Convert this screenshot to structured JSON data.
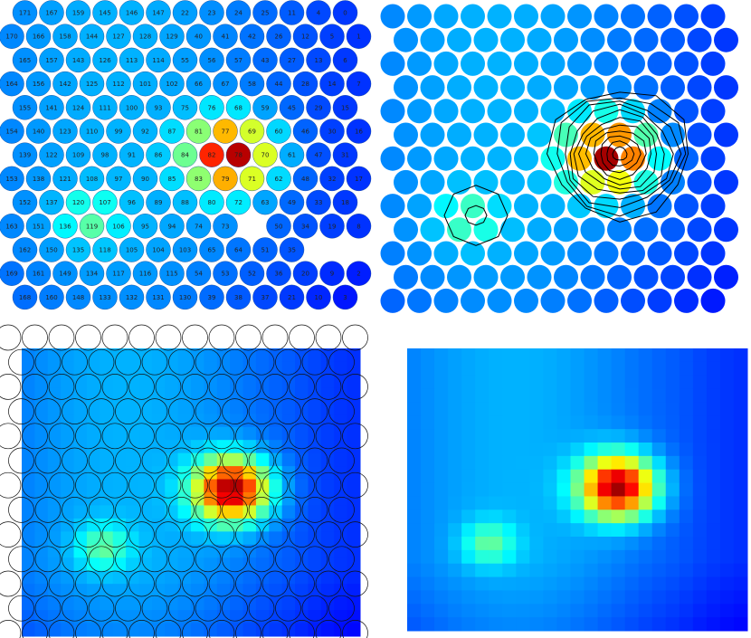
{
  "chart_data": [
    {
      "type": "scatter",
      "panel": "electrode-map-labeled",
      "colormap": "jet",
      "rows": [
        [
          "171",
          "167",
          "159",
          "145",
          "146",
          "147",
          "22",
          "23",
          "24",
          "25",
          "11",
          "4",
          "0"
        ],
        [
          "170",
          "166",
          "158",
          "144",
          "127",
          "128",
          "129",
          "40",
          "41",
          "42",
          "26",
          "12",
          "5",
          "1"
        ],
        [
          "165",
          "157",
          "143",
          "126",
          "113",
          "114",
          "55",
          "56",
          "57",
          "43",
          "27",
          "13",
          "6"
        ],
        [
          "164",
          "156",
          "142",
          "125",
          "112",
          "101",
          "102",
          "66",
          "67",
          "58",
          "44",
          "28",
          "14",
          "7"
        ],
        [
          "155",
          "141",
          "124",
          "111",
          "100",
          "93",
          "75",
          "76",
          "68",
          "59",
          "45",
          "29",
          "15"
        ],
        [
          "154",
          "140",
          "123",
          "110",
          "99",
          "92",
          "87",
          "81",
          "77",
          "69",
          "60",
          "46",
          "30",
          "16"
        ],
        [
          "139",
          "122",
          "109",
          "98",
          "91",
          "86",
          "84",
          "82",
          "78",
          "70",
          "61",
          "47",
          "31"
        ],
        [
          "153",
          "138",
          "121",
          "108",
          "97",
          "90",
          "85",
          "83",
          "79",
          "71",
          "62",
          "48",
          "32",
          "17"
        ],
        [
          "152",
          "137",
          "120",
          "107",
          "96",
          "89",
          "88",
          "80",
          "72",
          "63",
          "49",
          "33",
          "18"
        ],
        [
          "163",
          "151",
          "136",
          "119",
          "106",
          "95",
          "94",
          "74",
          "73",
          "",
          "50",
          "34",
          "19",
          "8"
        ],
        [
          "162",
          "150",
          "135",
          "118",
          "105",
          "104",
          "103",
          "65",
          "64",
          "51",
          "35"
        ],
        [
          "169",
          "161",
          "149",
          "134",
          "117",
          "116",
          "115",
          "54",
          "53",
          "52",
          "36",
          "20",
          "9",
          "2"
        ],
        [
          "168",
          "160",
          "148",
          "133",
          "132",
          "131",
          "130",
          "39",
          "38",
          "37",
          "21",
          "10",
          "3"
        ]
      ],
      "peak_electrode": "78"
    },
    {
      "type": "scatter",
      "panel": "electrode-map-contours",
      "colormap": "jet",
      "overlay": "contour lines",
      "peak_electrode": "78"
    },
    {
      "type": "heatmap",
      "panel": "interpolated-with-electrode-outlines",
      "colormap": "jet",
      "overlay": "electrode circles"
    },
    {
      "type": "heatmap",
      "panel": "interpolated",
      "colormap": "jet"
    }
  ]
}
